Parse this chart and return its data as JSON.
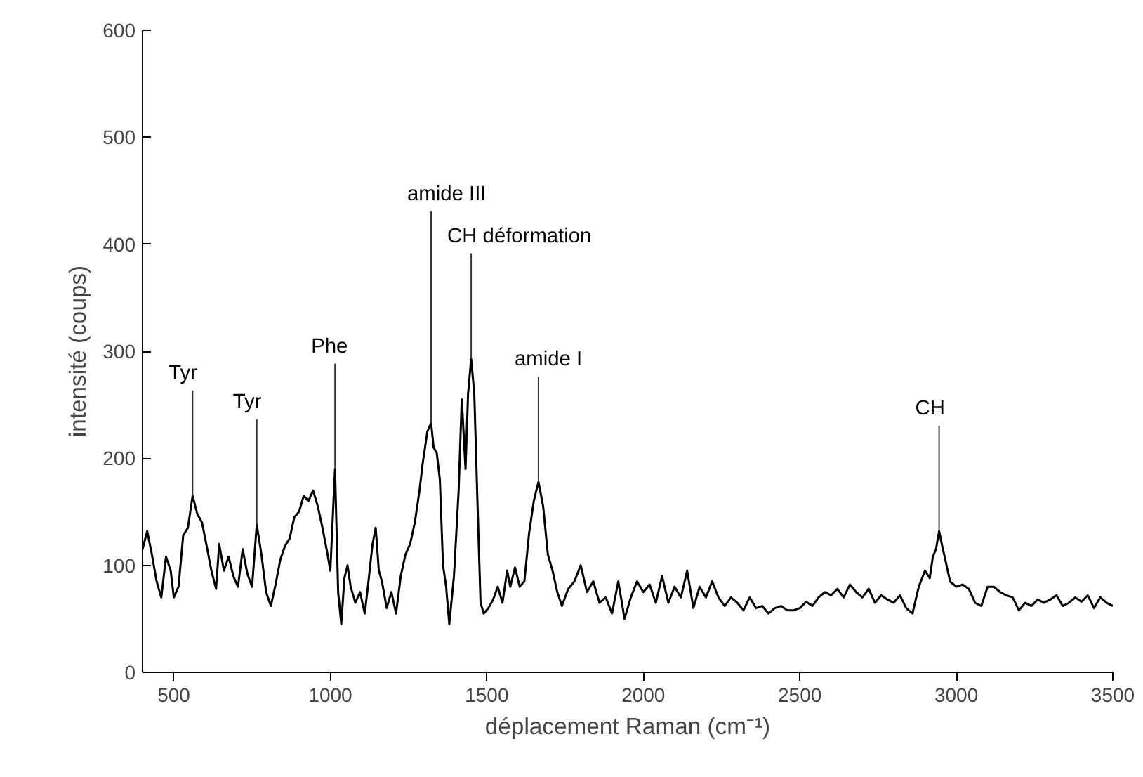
{
  "chart_data": {
    "type": "line",
    "xlabel": "déplacement Raman (cm⁻¹)",
    "ylabel": "intensité (coups)",
    "xlim": [
      400,
      3500
    ],
    "ylim": [
      0,
      600
    ],
    "xticks": [
      500,
      1000,
      1500,
      2000,
      2500,
      3000,
      3500
    ],
    "yticks": [
      0,
      100,
      200,
      300,
      400,
      500,
      600
    ],
    "grid": false,
    "series": [
      {
        "color": "#000000",
        "x": [
          400,
          415,
          430,
          445,
          460,
          475,
          490,
          500,
          515,
          530,
          545,
          560,
          575,
          590,
          605,
          620,
          635,
          645,
          660,
          675,
          690,
          705,
          720,
          735,
          750,
          765,
          780,
          795,
          810,
          825,
          840,
          855,
          870,
          885,
          900,
          915,
          930,
          945,
          960,
          975,
          990,
          1000,
          1015,
          1025,
          1035,
          1045,
          1055,
          1065,
          1080,
          1095,
          1110,
          1120,
          1135,
          1145,
          1155,
          1165,
          1180,
          1195,
          1210,
          1225,
          1240,
          1255,
          1270,
          1285,
          1295,
          1310,
          1322,
          1330,
          1340,
          1350,
          1360,
          1370,
          1380,
          1395,
          1410,
          1420,
          1432,
          1440,
          1450,
          1460,
          1470,
          1480,
          1490,
          1505,
          1520,
          1535,
          1550,
          1565,
          1575,
          1590,
          1605,
          1620,
          1635,
          1650,
          1665,
          1680,
          1695,
          1710,
          1725,
          1740,
          1760,
          1780,
          1800,
          1820,
          1840,
          1860,
          1880,
          1900,
          1920,
          1940,
          1960,
          1980,
          2000,
          2020,
          2040,
          2060,
          2080,
          2100,
          2120,
          2140,
          2160,
          2180,
          2200,
          2220,
          2240,
          2260,
          2280,
          2300,
          2320,
          2340,
          2360,
          2380,
          2400,
          2420,
          2440,
          2460,
          2480,
          2500,
          2520,
          2540,
          2560,
          2580,
          2600,
          2620,
          2640,
          2660,
          2680,
          2700,
          2720,
          2740,
          2760,
          2780,
          2800,
          2820,
          2840,
          2860,
          2880,
          2900,
          2915,
          2925,
          2935,
          2945,
          2955,
          2965,
          2980,
          3000,
          3020,
          3040,
          3060,
          3080,
          3100,
          3120,
          3140,
          3160,
          3180,
          3200,
          3220,
          3240,
          3260,
          3280,
          3300,
          3320,
          3340,
          3360,
          3380,
          3400,
          3420,
          3440,
          3460,
          3480,
          3500
        ],
        "values": [
          115,
          132,
          110,
          85,
          70,
          108,
          95,
          70,
          80,
          128,
          135,
          165,
          148,
          140,
          118,
          95,
          78,
          120,
          95,
          108,
          90,
          80,
          115,
          92,
          80,
          138,
          110,
          75,
          62,
          82,
          105,
          118,
          125,
          145,
          150,
          165,
          160,
          170,
          155,
          135,
          112,
          95,
          190,
          75,
          45,
          88,
          100,
          80,
          65,
          75,
          55,
          80,
          120,
          135,
          95,
          85,
          60,
          75,
          55,
          90,
          110,
          120,
          140,
          170,
          195,
          225,
          233,
          210,
          205,
          180,
          100,
          80,
          45,
          90,
          170,
          255,
          190,
          260,
          293,
          260,
          160,
          65,
          55,
          60,
          68,
          80,
          65,
          95,
          80,
          98,
          80,
          85,
          130,
          160,
          178,
          155,
          110,
          95,
          75,
          62,
          78,
          85,
          100,
          75,
          85,
          65,
          70,
          55,
          85,
          50,
          70,
          85,
          75,
          82,
          65,
          90,
          65,
          80,
          70,
          95,
          60,
          80,
          70,
          85,
          70,
          62,
          70,
          65,
          58,
          70,
          60,
          62,
          55,
          60,
          62,
          58,
          58,
          60,
          66,
          62,
          70,
          75,
          72,
          78,
          70,
          82,
          75,
          70,
          78,
          65,
          72,
          68,
          65,
          72,
          60,
          55,
          80,
          95,
          88,
          108,
          115,
          132,
          118,
          105,
          85,
          80,
          82,
          78,
          65,
          62,
          80,
          80,
          75,
          72,
          70,
          58,
          65,
          62,
          68,
          65,
          68,
          72,
          62,
          65,
          70,
          66,
          72,
          60,
          70,
          65,
          62
        ]
      }
    ],
    "annotations": [
      {
        "text": "Tyr",
        "x": 560,
        "y": 165
      },
      {
        "text": "Tyr",
        "x": 765,
        "y": 138
      },
      {
        "text": "Phe",
        "x": 1015,
        "y": 190
      },
      {
        "text": "amide III",
        "x": 1322,
        "y": 233
      },
      {
        "text": "CH déformation",
        "x": 1450,
        "y": 293
      },
      {
        "text": "amide I",
        "x": 1665,
        "y": 178
      },
      {
        "text": "CH",
        "x": 2945,
        "y": 132
      }
    ]
  }
}
